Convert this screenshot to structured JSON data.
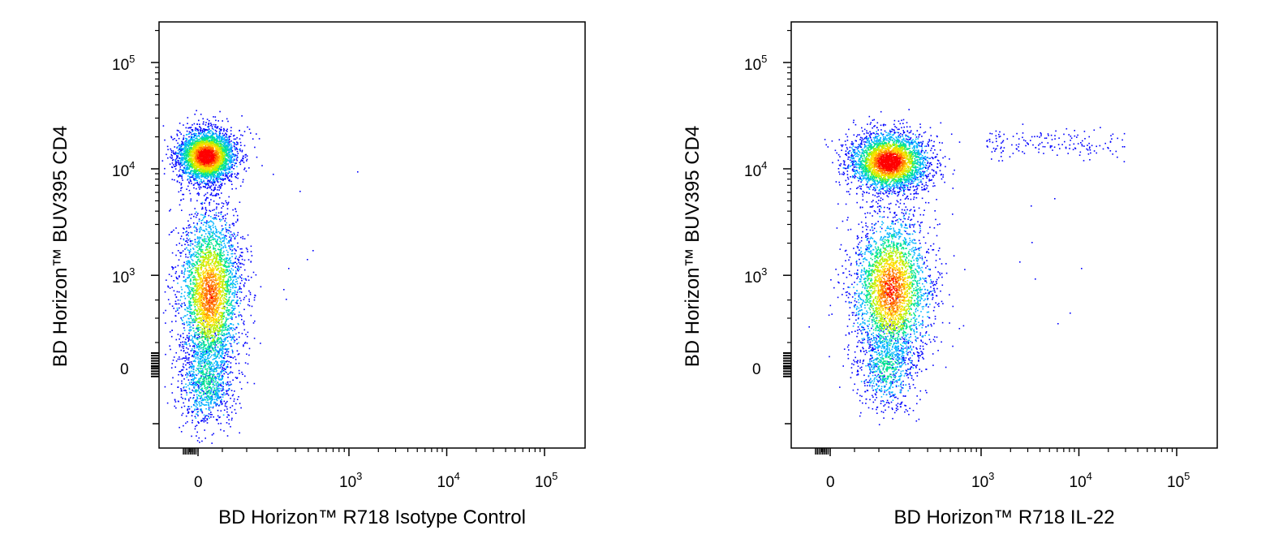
{
  "chart_data": [
    {
      "type": "scatter",
      "subtype": "flow-cytometry-density-dot-plot",
      "xlabel": "BD Horizon™ R718 Isotype Control",
      "ylabel": "BD Horizon™ BUV395 CD4",
      "x_scale": "biexponential",
      "y_scale": "biexponential",
      "x_ticks": [
        {
          "value": 0,
          "label": "0"
        },
        {
          "value": 1000,
          "label": "10",
          "exp": "3"
        },
        {
          "value": 10000,
          "label": "10",
          "exp": "4"
        },
        {
          "value": 100000,
          "label": "10",
          "exp": "5"
        }
      ],
      "y_ticks": [
        {
          "value": 0,
          "label": "0"
        },
        {
          "value": 1000,
          "label": "10",
          "exp": "3"
        },
        {
          "value": 10000,
          "label": "10",
          "exp": "4"
        },
        {
          "value": 100000,
          "label": "10",
          "exp": "5"
        }
      ],
      "color_scale": [
        "#0000ff",
        "#00b4ff",
        "#00e68c",
        "#b4f000",
        "#ffdc00",
        "#ff7800",
        "#ff0000"
      ],
      "populations": [
        {
          "name": "CD4+",
          "center_x": 80,
          "center_y": 10000,
          "relative_density": "high"
        },
        {
          "name": "CD4-",
          "center_x": 80,
          "center_y": 700,
          "relative_density": "medium"
        }
      ],
      "grid": false,
      "legend": "none"
    },
    {
      "type": "scatter",
      "subtype": "flow-cytometry-density-dot-plot",
      "xlabel": "BD Horizon™ R718 IL-22",
      "ylabel": "BD Horizon™ BUV395 CD4",
      "x_scale": "biexponential",
      "y_scale": "biexponential",
      "x_ticks": [
        {
          "value": 0,
          "label": "0"
        },
        {
          "value": 1000,
          "label": "10",
          "exp": "3"
        },
        {
          "value": 10000,
          "label": "10",
          "exp": "4"
        },
        {
          "value": 100000,
          "label": "10",
          "exp": "5"
        }
      ],
      "y_ticks": [
        {
          "value": 0,
          "label": "0"
        },
        {
          "value": 1000,
          "label": "10",
          "exp": "3"
        },
        {
          "value": 10000,
          "label": "10",
          "exp": "4"
        },
        {
          "value": 100000,
          "label": "10",
          "exp": "5"
        }
      ],
      "color_scale": [
        "#0000ff",
        "#00b4ff",
        "#00e68c",
        "#b4f000",
        "#ffdc00",
        "#ff7800",
        "#ff0000"
      ],
      "populations": [
        {
          "name": "CD4+ IL-22-",
          "center_x": 120,
          "center_y": 10000,
          "relative_density": "high"
        },
        {
          "name": "CD4- IL-22-",
          "center_x": 120,
          "center_y": 700,
          "relative_density": "medium"
        },
        {
          "name": "CD4+ IL-22+",
          "x_range": [
            1000,
            30000
          ],
          "center_y": 13000,
          "relative_density": "low"
        }
      ],
      "grid": false,
      "legend": "none"
    }
  ]
}
